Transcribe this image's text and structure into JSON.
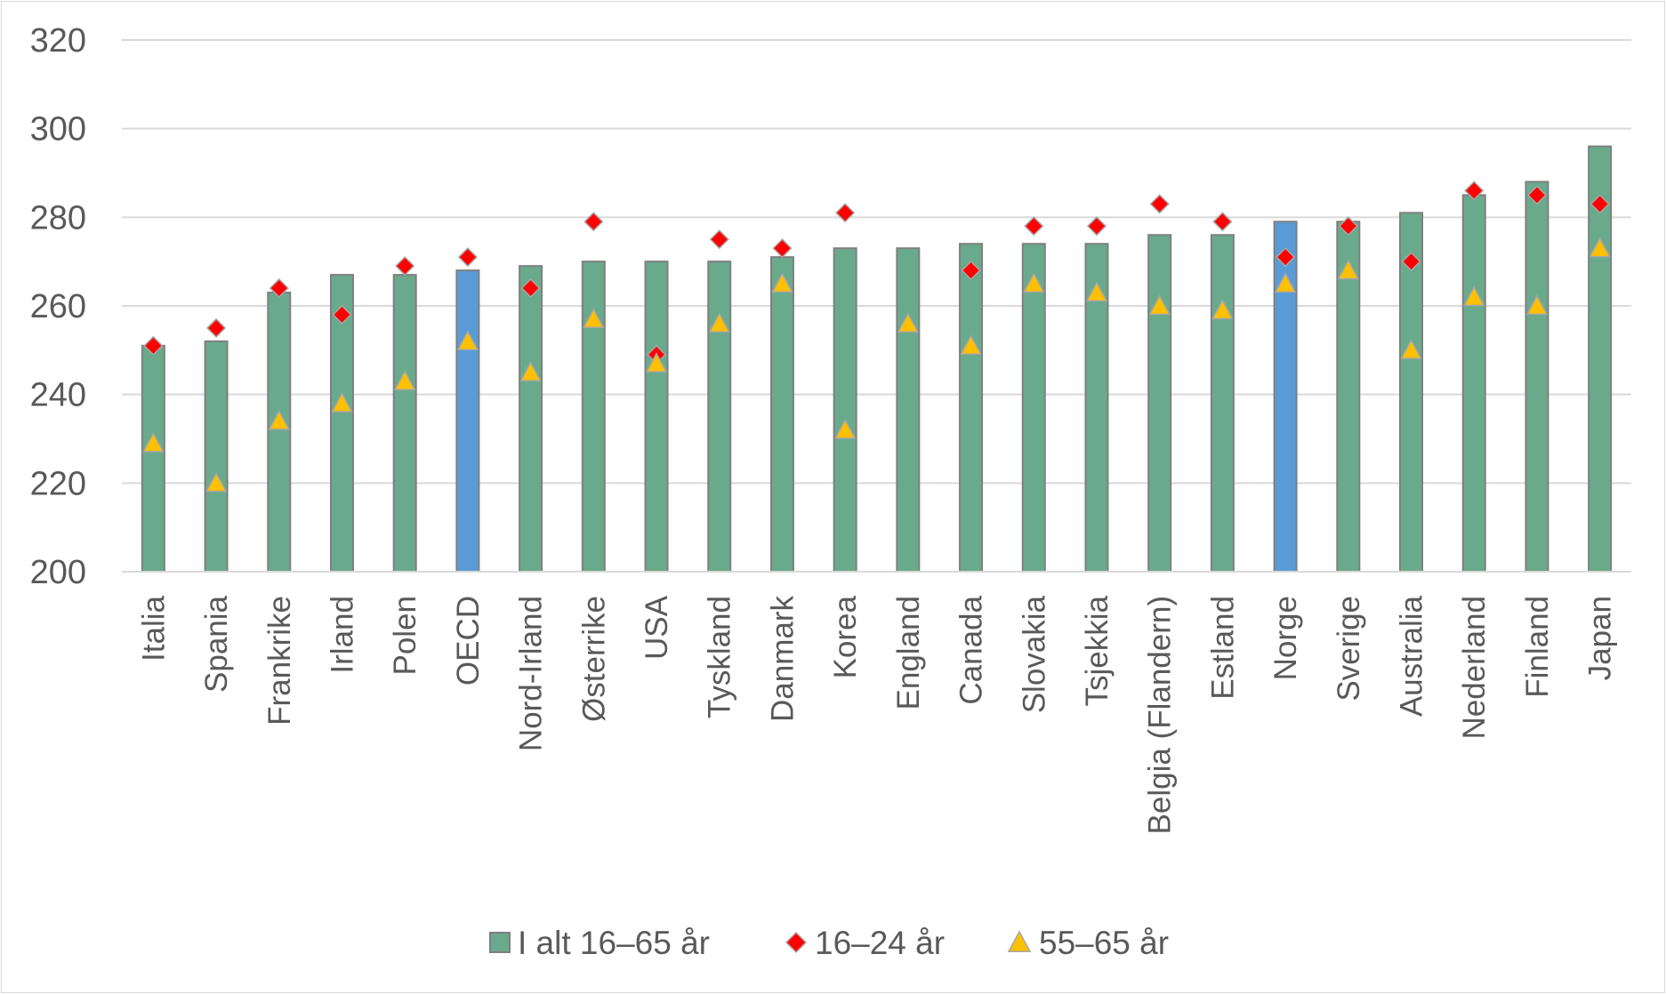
{
  "chart_data": {
    "type": "bar",
    "ylim": [
      200,
      320
    ],
    "yticks": [
      200,
      220,
      240,
      260,
      280,
      300,
      320
    ],
    "grid": true,
    "legend_position": "bottom",
    "categories": [
      "Italia",
      "Spania",
      "Frankrike",
      "Irland",
      "Polen",
      "OECD",
      "Nord-Irland",
      "Østerrike",
      "USA",
      "Tyskland",
      "Danmark",
      "Korea",
      "England",
      "Canada",
      "Slovakia",
      "Tsjekkia",
      "Belgia (Flandern)",
      "Estland",
      "Norge",
      "Sverige",
      "Australia",
      "Nederland",
      "Finland",
      "Japan"
    ],
    "highlighted_categories": [
      "OECD",
      "Norge"
    ],
    "series": [
      {
        "name": "I alt 16–65 år",
        "marker": "bar",
        "color": "#6aaa8c",
        "highlight_color": "#5b9bd5",
        "values": [
          251,
          252,
          263,
          267,
          267,
          268,
          269,
          270,
          270,
          270,
          271,
          273,
          273,
          274,
          274,
          274,
          276,
          276,
          279,
          279,
          281,
          285,
          288,
          296
        ]
      },
      {
        "name": "16–24 år",
        "marker": "diamond",
        "color": "#ff0000",
        "values": [
          251,
          255,
          264,
          258,
          269,
          271,
          264,
          279,
          249,
          275,
          273,
          281,
          null,
          268,
          278,
          278,
          283,
          279,
          271,
          278,
          270,
          286,
          285,
          283
        ]
      },
      {
        "name": "55–65 år",
        "marker": "triangle",
        "color": "#ffc000",
        "values": [
          229,
          220,
          234,
          238,
          243,
          252,
          245,
          257,
          247,
          256,
          265,
          232,
          256,
          251,
          265,
          263,
          260,
          259,
          265,
          268,
          250,
          262,
          260,
          273
        ]
      }
    ]
  }
}
